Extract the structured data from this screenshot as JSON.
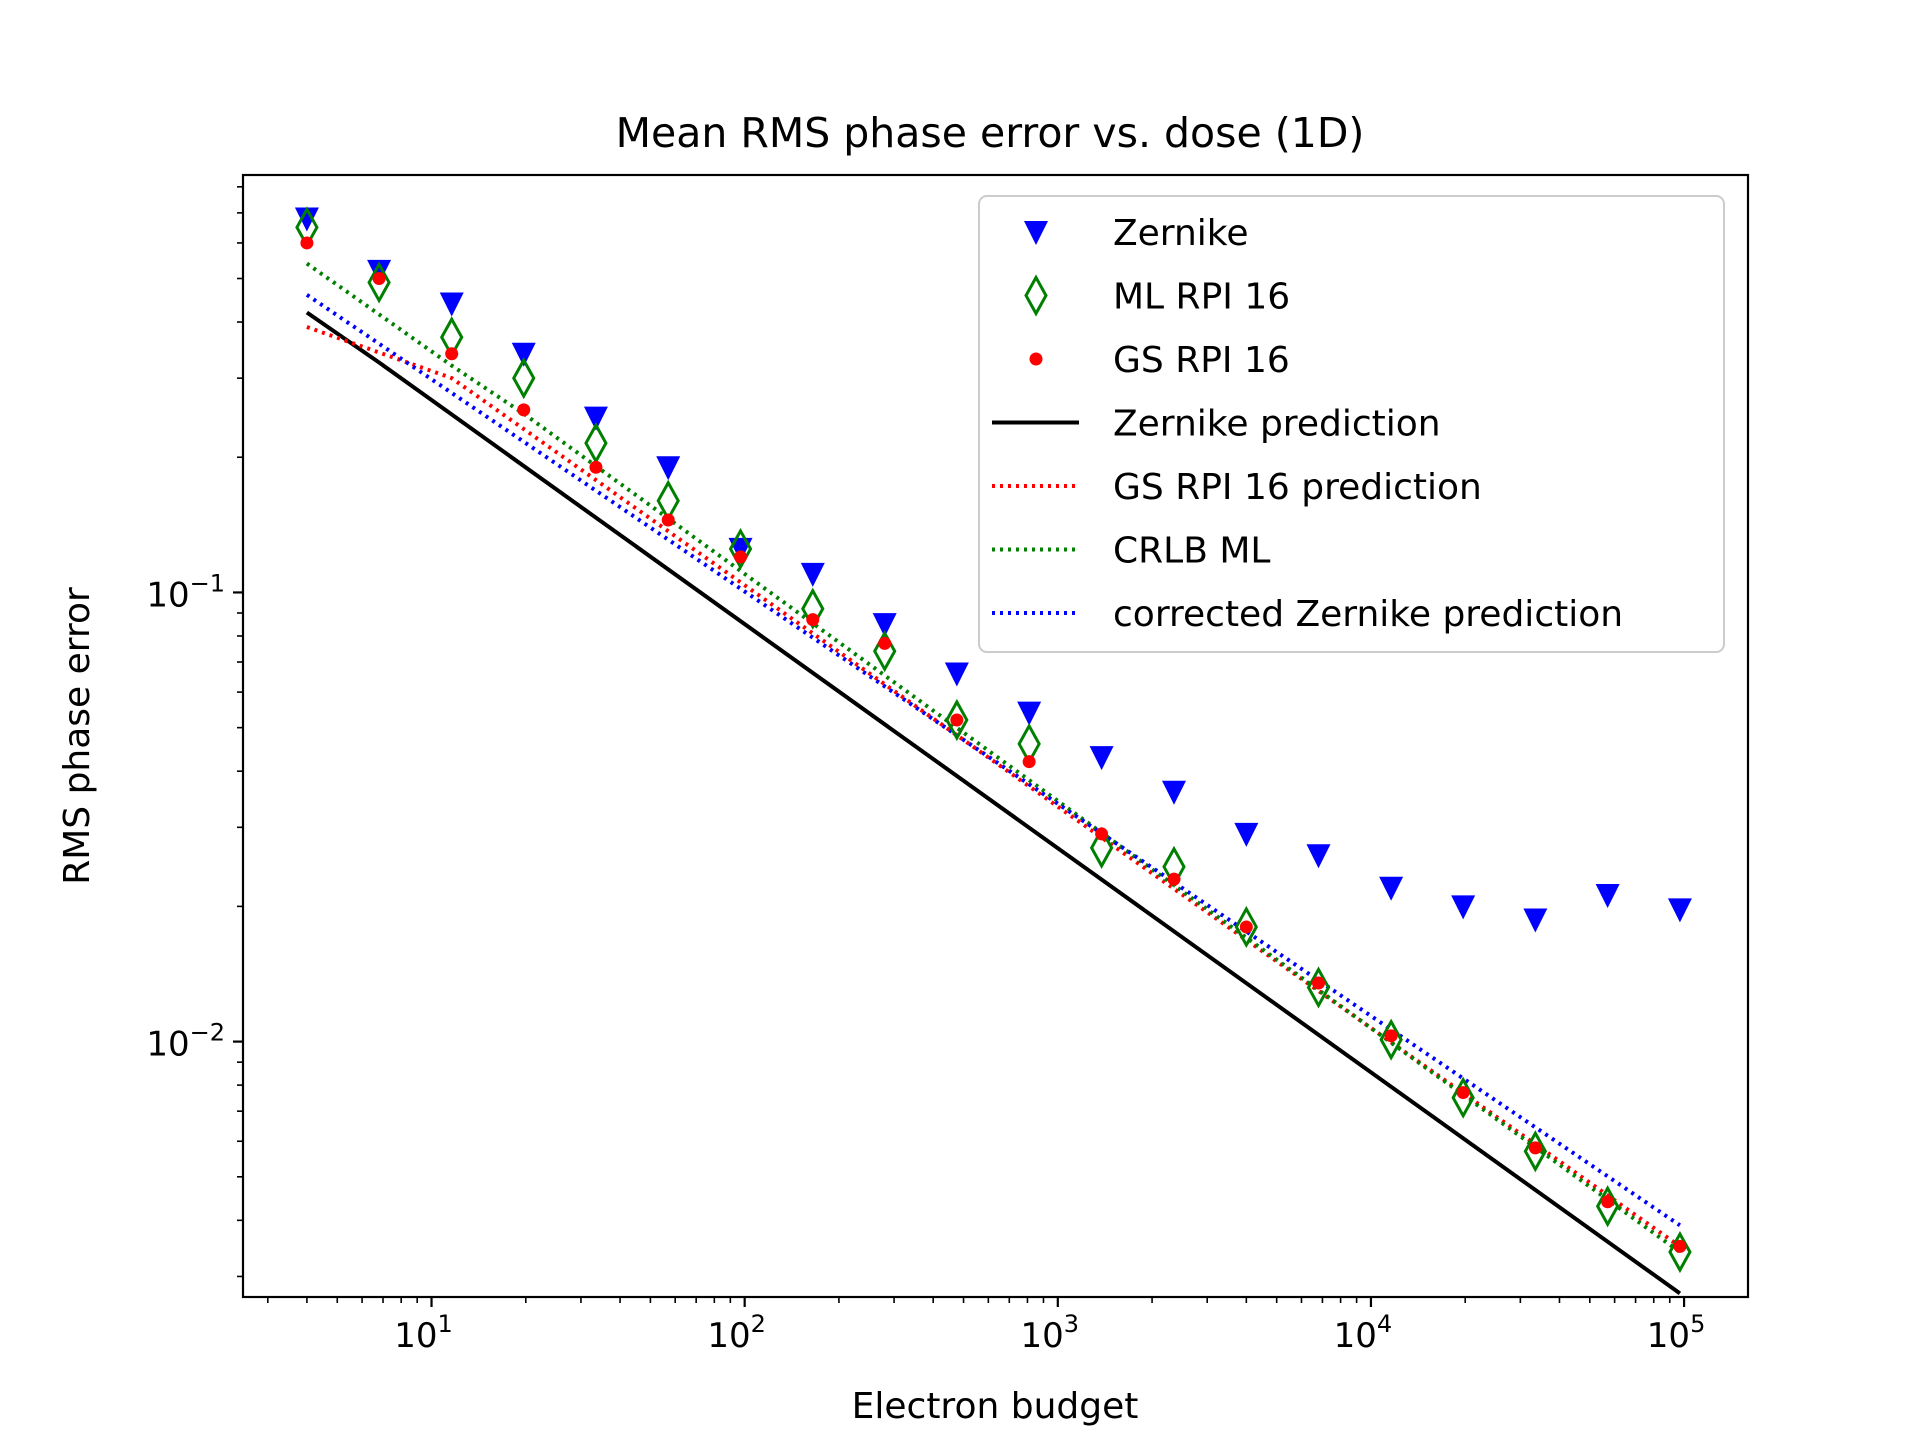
{
  "chart_data": {
    "type": "scatter",
    "title": "Mean RMS phase error vs. dose (1D)",
    "xlabel": "Electron budget",
    "ylabel": "RMS phase error",
    "xscale": "log",
    "yscale": "log",
    "xlim": [
      2.5,
      160000
    ],
    "ylim": [
      0.0027,
      0.85
    ],
    "x_tick_labels": [
      {
        "base": "10",
        "exp": "1",
        "value": 10
      },
      {
        "base": "10",
        "exp": "2",
        "value": 100
      },
      {
        "base": "10",
        "exp": "3",
        "value": 1000
      },
      {
        "base": "10",
        "exp": "4",
        "value": 10000
      },
      {
        "base": "10",
        "exp": "5",
        "value": 100000
      }
    ],
    "y_tick_labels": [
      {
        "base": "10",
        "exp": "−1",
        "value": 0.1
      },
      {
        "base": "10",
        "exp": "−2",
        "value": 0.01
      }
    ],
    "legend_position": "upper right",
    "x": [
      4,
      6.8,
      11.6,
      19.7,
      33.5,
      57,
      97,
      165,
      280,
      476,
      810,
      1380,
      2350,
      4000,
      6800,
      11600,
      19700,
      33500,
      57000,
      97000
    ],
    "series": [
      {
        "name": "Zernike",
        "style": "marker",
        "marker": "triangle_down",
        "color": "#0000ff",
        "values": [
          0.68,
          0.52,
          0.44,
          0.34,
          0.245,
          0.19,
          0.125,
          0.11,
          0.085,
          0.066,
          0.054,
          0.043,
          0.036,
          0.029,
          0.026,
          0.022,
          0.02,
          0.0187,
          0.0212,
          0.0197
        ]
      },
      {
        "name": "ML RPI 16",
        "style": "marker",
        "marker": "thin_diamond_open",
        "color": "#008000",
        "values": [
          0.65,
          0.49,
          0.37,
          0.3,
          0.215,
          0.16,
          0.125,
          0.092,
          0.074,
          0.052,
          0.046,
          0.027,
          0.0245,
          0.018,
          0.0132,
          0.0101,
          0.0075,
          0.0057,
          0.0043,
          0.0034
        ]
      },
      {
        "name": "GS RPI 16",
        "style": "marker",
        "marker": "dot",
        "color": "#ff0000",
        "values": [
          0.6,
          0.5,
          0.34,
          0.255,
          0.19,
          0.145,
          0.12,
          0.087,
          0.077,
          0.052,
          0.042,
          0.029,
          0.023,
          0.018,
          0.0135,
          0.0103,
          0.0077,
          0.0058,
          0.0044,
          0.0035
        ]
      },
      {
        "name": "Zernike prediction",
        "style": "line",
        "dash": "solid",
        "color": "#000000",
        "line_x": [
          4,
          6.8,
          97000
        ],
        "line_values": [
          0.42,
          0.325,
          0.00275
        ]
      },
      {
        "name": "GS RPI 16 prediction",
        "style": "line",
        "dash": "dotted",
        "color": "#ff0000",
        "line_x": [
          4,
          11.6,
          97000
        ],
        "line_values": [
          0.39,
          0.3,
          0.0035
        ]
      },
      {
        "name": "CRLB ML",
        "style": "line",
        "dash": "dotted",
        "color": "#008000",
        "line_x": [
          4,
          11.6,
          19.7,
          97000
        ],
        "line_values": [
          0.54,
          0.32,
          0.25,
          0.0034
        ]
      },
      {
        "name": "corrected Zernike prediction",
        "style": "line",
        "dash": "dotted",
        "color": "#0000ff",
        "line_x": [
          4,
          97000
        ],
        "line_values": [
          0.46,
          0.0039
        ]
      }
    ]
  }
}
